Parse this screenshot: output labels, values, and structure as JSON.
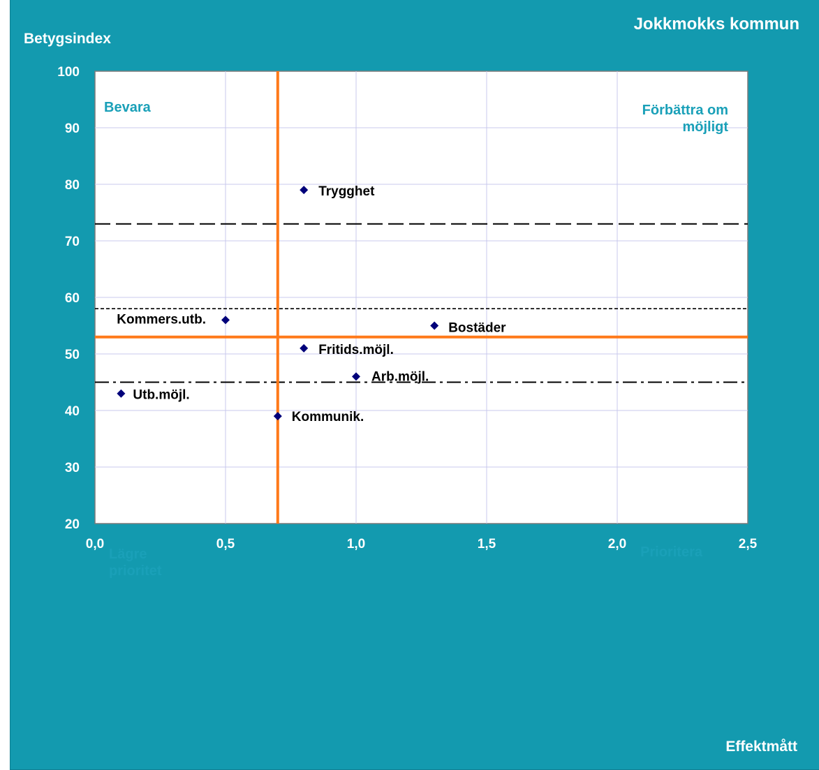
{
  "chart_data": {
    "type": "scatter",
    "title": "Jokkmokks kommun",
    "xlabel": "Effektmått",
    "ylabel": "Betygsindex",
    "xlim": [
      0,
      2.5
    ],
    "ylim": [
      20,
      100
    ],
    "x_ticks": [
      "0,0",
      "0,5",
      "1,0",
      "1,5",
      "2,0",
      "2,5"
    ],
    "y_ticks": [
      "20",
      "30",
      "40",
      "50",
      "60",
      "70",
      "80",
      "90",
      "100"
    ],
    "grid": "on",
    "points": [
      {
        "label": "Trygghet",
        "x": 0.8,
        "y": 79
      },
      {
        "label": "Kommers.utb.",
        "x": 0.5,
        "y": 56
      },
      {
        "label": "Bostäder",
        "x": 1.3,
        "y": 55
      },
      {
        "label": "Fritids.möjl.",
        "x": 0.8,
        "y": 51
      },
      {
        "label": "Arb.möjl.",
        "x": 1.0,
        "y": 46
      },
      {
        "label": "Utb.möjl.",
        "x": 0.1,
        "y": 43
      },
      {
        "label": "Kommunik.",
        "x": 0.7,
        "y": 39
      }
    ],
    "reference_lines": {
      "vertical_x": 0.7,
      "horizontal_y": 53,
      "dashed_long_y": 73,
      "dashed_short_y": 58,
      "dash_dot_y": 45
    },
    "quadrant_labels": {
      "top_left": [
        "Bevara"
      ],
      "top_right": [
        "Förbättra om",
        "möjligt"
      ],
      "bottom_left": [
        "Lägre",
        "prioritet"
      ],
      "bottom_right": [
        "Prioritera"
      ]
    },
    "colors": {
      "background": "#139aaf",
      "plot_area": "#ffffff",
      "grid": "#c8c8ec",
      "marker": "#00007a",
      "reference_solid": "#ff7a1a",
      "quadrant_text": "#1aa0b8"
    }
  }
}
